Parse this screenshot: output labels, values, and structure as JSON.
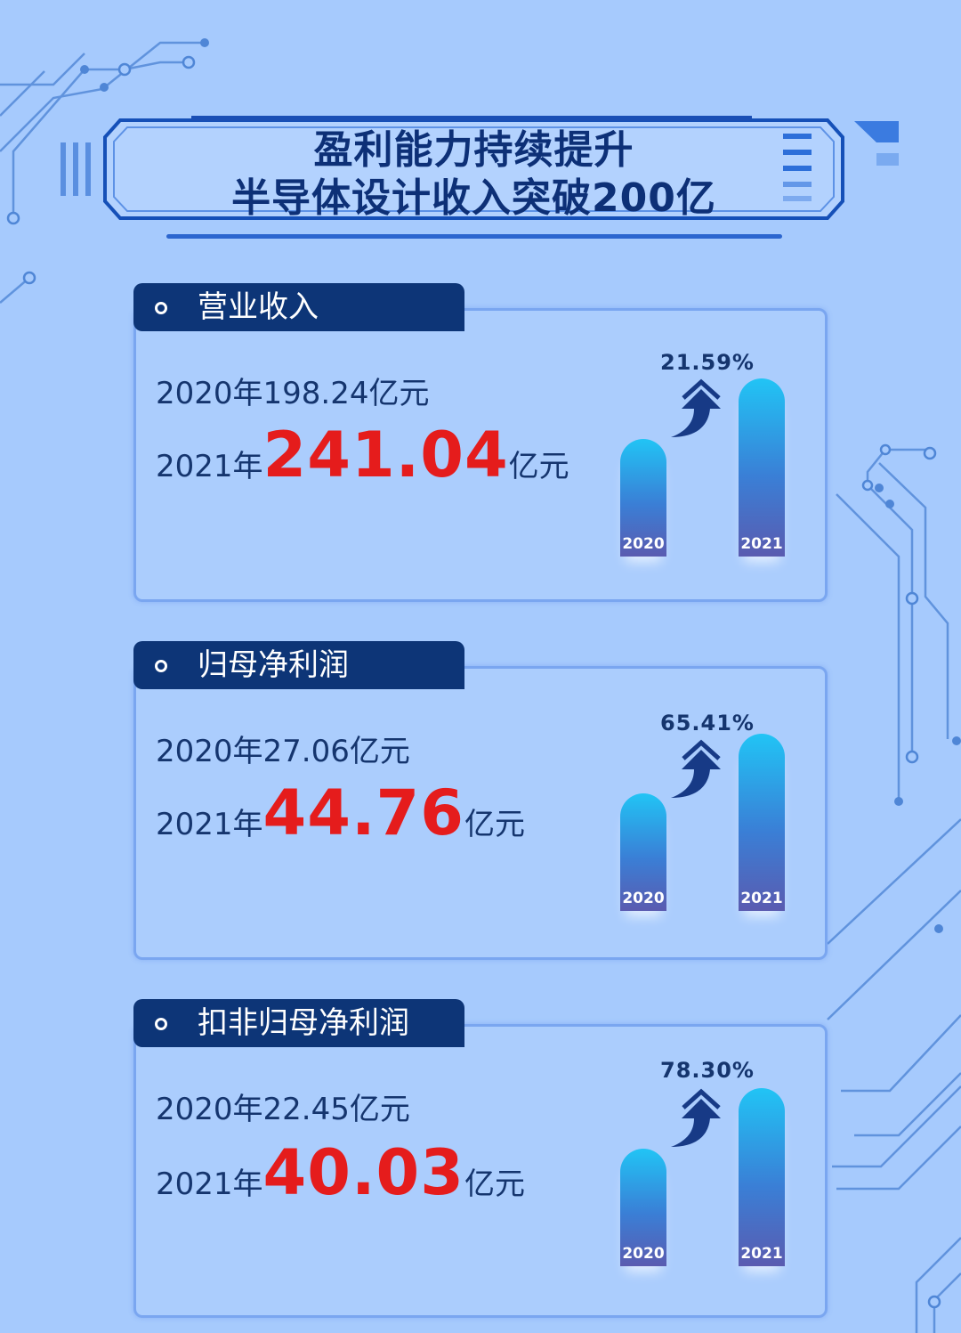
{
  "title": {
    "line1": "盈利能力持续提升",
    "line2": "半导体设计收入突破200亿"
  },
  "colors": {
    "background": "#a6cafd",
    "navy": "#0d3577",
    "highlight_red": "#e51c1c"
  },
  "cards": [
    {
      "label": "营业收入",
      "line_2020": "2020年198.24亿元",
      "prefix_2021": "2021年",
      "value_2021": "241.04",
      "unit": "亿元",
      "growth": "21.59%",
      "bar_labels": [
        "2020",
        "2021"
      ]
    },
    {
      "label": "归母净利润",
      "line_2020": "2020年27.06亿元",
      "prefix_2021": "2021年",
      "value_2021": "44.76",
      "unit": "亿元",
      "growth": "65.41%",
      "bar_labels": [
        "2020",
        "2021"
      ]
    },
    {
      "label": "扣非归母净利润",
      "line_2020": "2020年22.45亿元",
      "prefix_2021": "2021年",
      "value_2021": "40.03",
      "unit": "亿元",
      "growth": "78.30%",
      "bar_labels": [
        "2020",
        "2021"
      ]
    }
  ]
}
